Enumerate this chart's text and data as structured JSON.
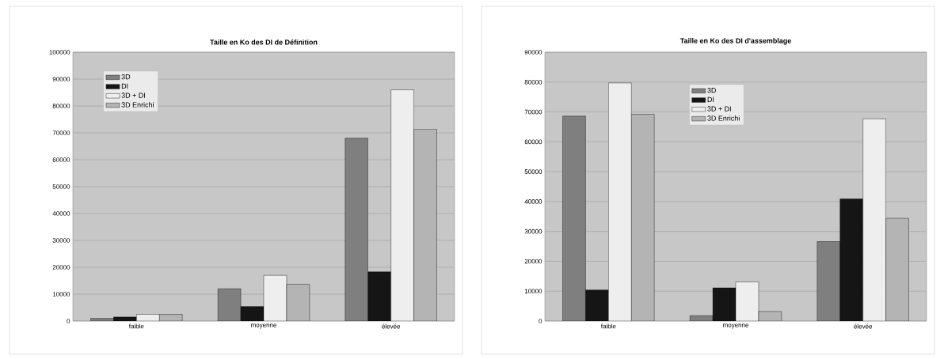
{
  "chart_data": [
    {
      "type": "bar",
      "title": "Taille en Ko des DI de Définition",
      "categories": [
        "faible",
        "moyenne",
        "élevée"
      ],
      "series": [
        {
          "name": "3D",
          "color": "#7f7f7f",
          "values": [
            1000,
            12000,
            68000
          ]
        },
        {
          "name": "DI",
          "color": "#151515",
          "values": [
            1500,
            5400,
            18300
          ]
        },
        {
          "name": "3D + DI",
          "color": "#eeeeee",
          "values": [
            2500,
            17000,
            86000
          ]
        },
        {
          "name": "3D Enrichi",
          "color": "#b4b4b4",
          "values": [
            2500,
            13700,
            71400
          ]
        }
      ],
      "ylim": [
        0,
        100000
      ],
      "yticks": [
        0,
        10000,
        20000,
        30000,
        40000,
        50000,
        60000,
        70000,
        80000,
        90000,
        100000
      ],
      "grid": "y",
      "legend": "top left"
    },
    {
      "type": "bar",
      "title": "Taille en Ko des DI d'assemblage",
      "categories": [
        "faible",
        "moyenne",
        "élevée"
      ],
      "series": [
        {
          "name": "3D",
          "color": "#7f7f7f",
          "values": [
            68600,
            1800,
            26600
          ]
        },
        {
          "name": "DI",
          "color": "#151515",
          "values": [
            10400,
            11100,
            40900
          ]
        },
        {
          "name": "3D + DI",
          "color": "#eeeeee",
          "values": [
            79700,
            13100,
            67700
          ]
        },
        {
          "name": "3D Enrichi",
          "color": "#b4b4b4",
          "values": [
            69200,
            3200,
            34400
          ]
        }
      ],
      "ylim": [
        0,
        90000
      ],
      "yticks": [
        0,
        10000,
        20000,
        30000,
        40000,
        50000,
        60000,
        70000,
        80000,
        90000
      ],
      "grid": "y",
      "legend": "top"
    }
  ]
}
